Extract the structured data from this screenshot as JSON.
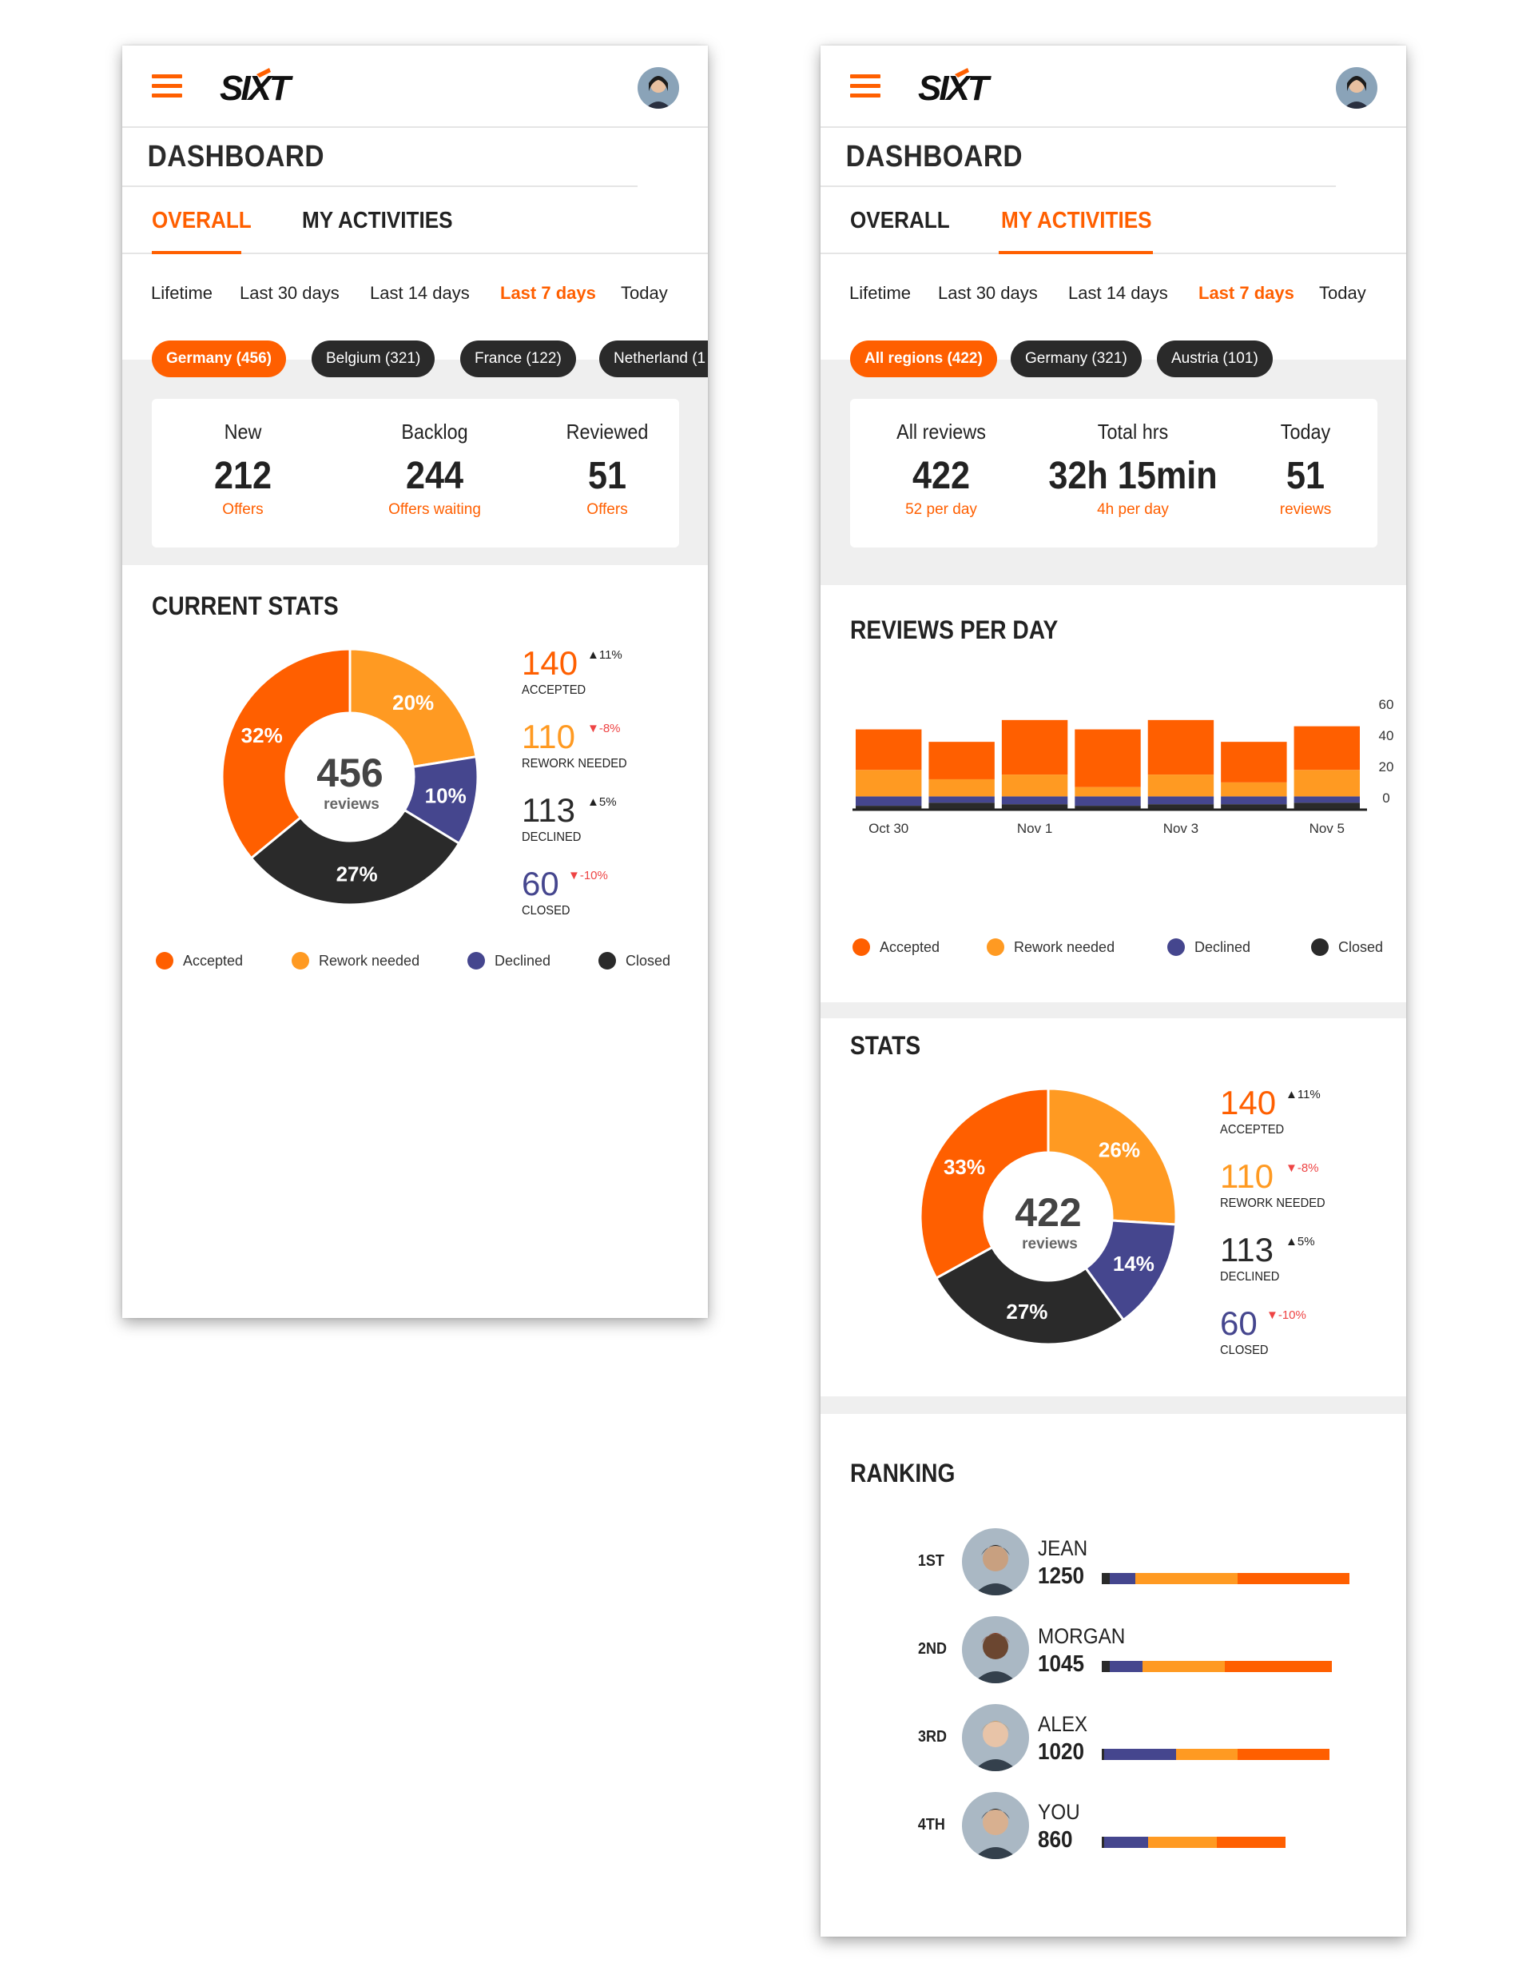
{
  "colors": {
    "accent": "#ff5f00",
    "accepted": "#ff5f00",
    "rework": "#ff9a22",
    "declined": "#45468e",
    "closed": "#2a2a2a",
    "positive": "#222222",
    "negative": "#ee4444"
  },
  "brand": {
    "logo_text": "SIXT"
  },
  "icons": {
    "menu": "hamburger-icon",
    "user": "avatar"
  },
  "left": {
    "page_title": "DASHBOARD",
    "tabs": [
      {
        "label": "OVERALL",
        "active": true
      },
      {
        "label": "MY ACTIVITIES",
        "active": false
      }
    ],
    "ranges": [
      "Lifetime",
      "Last 30 days",
      "Last 14 days",
      "Last 7 days",
      "Today"
    ],
    "active_range": "Last 7 days",
    "chips": [
      "Germany (456)",
      "Belgium (321)",
      "France (122)",
      "Netherland (1"
    ],
    "kpis": [
      {
        "label": "New",
        "value": "212",
        "sub": "Offers"
      },
      {
        "label": "Backlog",
        "value": "244",
        "sub": "Offers waiting"
      },
      {
        "label": "Reviewed",
        "value": "51",
        "sub": "Offers"
      }
    ],
    "section_title": "CURRENT STATS",
    "donut": {
      "total": "456",
      "unit": "reviews",
      "slices": [
        {
          "label": "20%",
          "value": 20,
          "key": "rework"
        },
        {
          "label": "10%",
          "value": 10,
          "key": "declined"
        },
        {
          "label": "27%",
          "value": 27,
          "key": "closed"
        },
        {
          "label": "32%",
          "value": 32,
          "key": "accepted"
        }
      ]
    },
    "stats": [
      {
        "value": "140",
        "change": "▲11%",
        "label": "ACCEPTED",
        "key": "accepted",
        "trend": "up"
      },
      {
        "value": "110",
        "change": "▼-8%",
        "label": "REWORK NEEDED",
        "key": "rework",
        "trend": "down"
      },
      {
        "value": "113",
        "change": "▲5%",
        "label": "DECLINED",
        "key": "closed",
        "trend": "up"
      },
      {
        "value": "60",
        "change": "▼-10%",
        "label": "CLOSED",
        "key": "declined",
        "trend": "down"
      }
    ],
    "legend": [
      "Accepted",
      "Rework needed",
      "Declined",
      "Closed"
    ]
  },
  "right": {
    "page_title": "DASHBOARD",
    "tabs": [
      {
        "label": "OVERALL",
        "active": false
      },
      {
        "label": "MY ACTIVITIES",
        "active": true
      }
    ],
    "ranges": [
      "Lifetime",
      "Last 30 days",
      "Last 14 days",
      "Last 7 days",
      "Today"
    ],
    "active_range": "Last 7 days",
    "chips": [
      "All regions (422)",
      "Germany (321)",
      "Austria (101)"
    ],
    "kpis": [
      {
        "label": "All reviews",
        "value": "422",
        "sub": "52 per day"
      },
      {
        "label": "Total hrs",
        "value": "32h 15min",
        "sub": "4h per day"
      },
      {
        "label": "Today",
        "value": "51",
        "sub": "reviews"
      }
    ],
    "reviews_title": "REVIEWS PER DAY",
    "stats_title": "STATS",
    "ranking_title": "RANKING",
    "donut": {
      "total": "422",
      "unit": "reviews",
      "slices": [
        {
          "label": "26%",
          "value": 26,
          "key": "rework"
        },
        {
          "label": "14%",
          "value": 14,
          "key": "declined"
        },
        {
          "label": "27%",
          "value": 27,
          "key": "closed"
        },
        {
          "label": "33%",
          "value": 33,
          "key": "accepted"
        }
      ]
    },
    "stats": [
      {
        "value": "140",
        "change": "▲11%",
        "label": "ACCEPTED",
        "key": "accepted",
        "trend": "up"
      },
      {
        "value": "110",
        "change": "▼-8%",
        "label": "REWORK NEEDED",
        "key": "rework",
        "trend": "down"
      },
      {
        "value": "113",
        "change": "▲5%",
        "label": "DECLINED",
        "key": "closed",
        "trend": "up"
      },
      {
        "value": "60",
        "change": "▼-10%",
        "label": "CLOSED",
        "key": "declined",
        "trend": "down"
      }
    ],
    "legend": [
      "Accepted",
      "Rework needed",
      "Declined",
      "Closed"
    ],
    "ranking": [
      {
        "pos": "1ST",
        "name": "JEAN",
        "score": "1250",
        "closed": 3,
        "declined": 10,
        "rework": 40,
        "accepted": 44
      },
      {
        "pos": "2ND",
        "name": "MORGAN",
        "score": "1045",
        "closed": 3,
        "declined": 13,
        "rework": 32,
        "accepted": 42
      },
      {
        "pos": "3RD",
        "name": "ALEX",
        "score": "1020",
        "closed": 1,
        "declined": 28,
        "rework": 24,
        "accepted": 36
      },
      {
        "pos": "4TH",
        "name": "YOU",
        "score": "860",
        "closed": 1,
        "declined": 17,
        "rework": 27,
        "accepted": 27
      }
    ]
  },
  "chart_data": {
    "type": "bar",
    "stacked": true,
    "categories": [
      "Oct 30",
      "Oct 31",
      "Nov 1",
      "Nov 2",
      "Nov 3",
      "Nov 4",
      "Nov 5"
    ],
    "x_tick_labels": [
      "Oct 30",
      "Nov 1",
      "Nov 3",
      "Nov 5"
    ],
    "y_ticks": [
      0,
      20,
      40,
      60
    ],
    "ylim": [
      0,
      60
    ],
    "series": [
      {
        "name": "Closed",
        "key": "closed",
        "values": [
          2,
          4,
          3,
          2,
          3,
          3,
          4
        ]
      },
      {
        "name": "Declined",
        "key": "declined",
        "values": [
          6,
          4,
          5,
          6,
          5,
          5,
          4
        ]
      },
      {
        "name": "Rework needed",
        "key": "rework",
        "values": [
          17,
          11,
          14,
          6,
          14,
          9,
          17
        ]
      },
      {
        "name": "Accepted",
        "key": "accepted",
        "values": [
          26,
          24,
          35,
          37,
          35,
          26,
          28
        ]
      }
    ],
    "legend": "bottom",
    "grid": false
  }
}
